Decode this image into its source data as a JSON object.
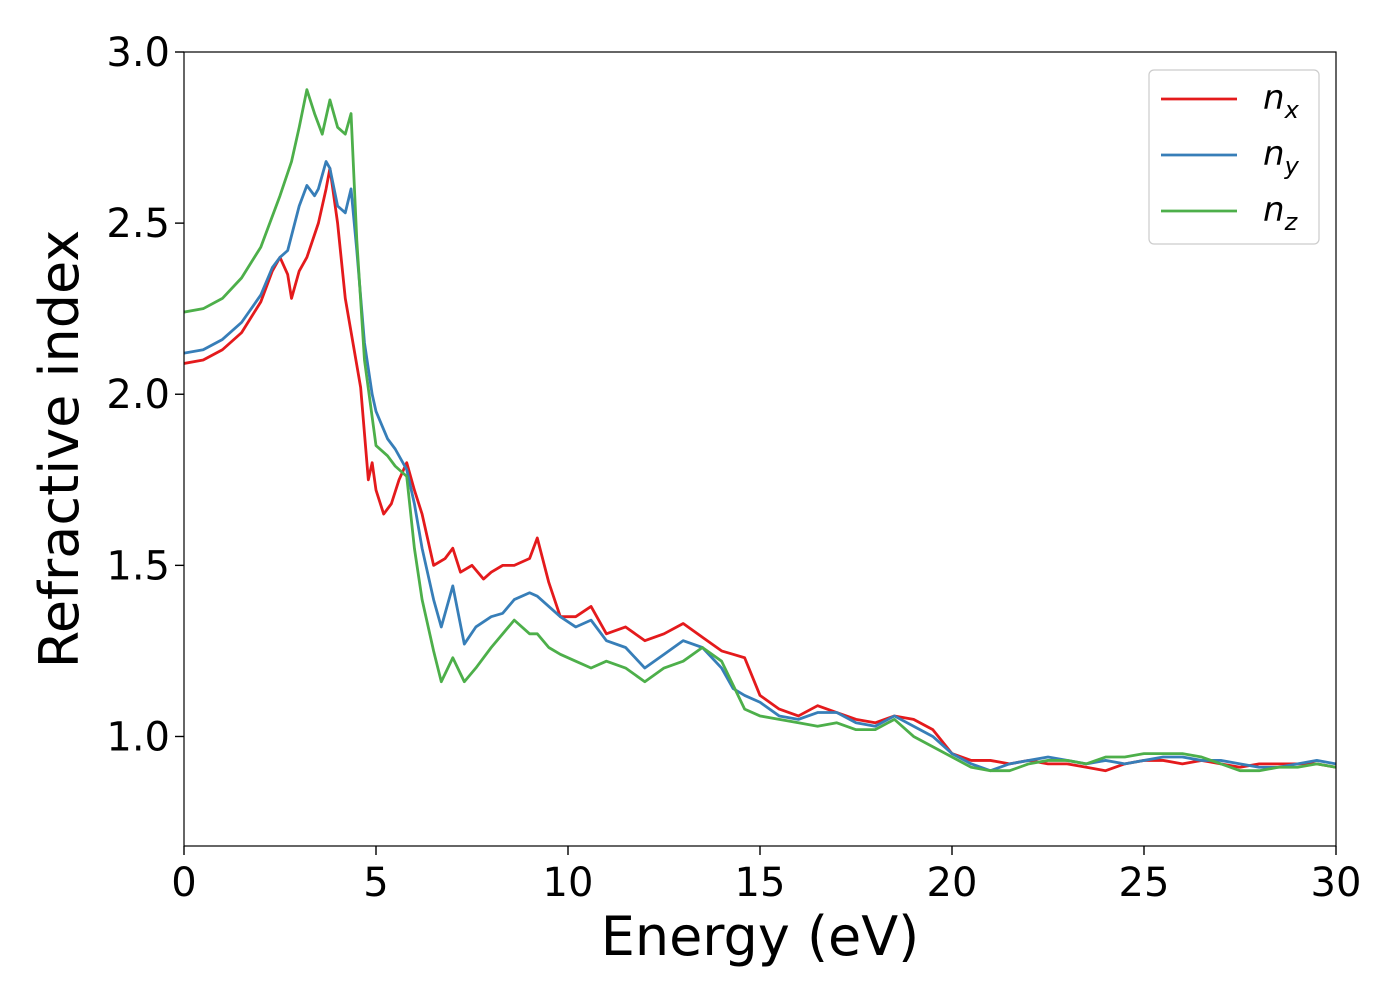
{
  "chart_data": {
    "type": "line",
    "title": "",
    "xlabel": "Energy (eV)",
    "ylabel": "Refractive index",
    "xlim": [
      0,
      30
    ],
    "ylim": [
      0.68,
      3.0
    ],
    "xticks": [
      0,
      5,
      10,
      15,
      20,
      25,
      30
    ],
    "xtick_labels": [
      "0",
      "5",
      "10",
      "15",
      "20",
      "25",
      "30"
    ],
    "yticks": [
      1.0,
      1.5,
      2.0,
      2.5,
      3.0
    ],
    "ytick_labels": [
      "1.0",
      "1.5",
      "2.0",
      "2.5",
      "3.0"
    ],
    "grid": false,
    "legend_position": "top-right",
    "series": [
      {
        "name": "n",
        "subscript": "x",
        "color": "#e41a1c",
        "x": [
          0,
          0.5,
          1,
          1.5,
          2,
          2.3,
          2.5,
          2.7,
          2.8,
          3,
          3.2,
          3.5,
          3.7,
          3.8,
          4,
          4.2,
          4.4,
          4.6,
          4.8,
          4.9,
          5,
          5.2,
          5.4,
          5.6,
          5.8,
          6,
          6.2,
          6.5,
          6.8,
          7,
          7.2,
          7.5,
          7.8,
          8,
          8.3,
          8.6,
          9,
          9.2,
          9.5,
          9.8,
          10.2,
          10.6,
          11,
          11.5,
          12,
          12.5,
          13,
          13.5,
          14,
          14.3,
          14.6,
          15,
          15.5,
          16,
          16.5,
          17,
          17.5,
          18,
          18.5,
          19,
          19.5,
          20,
          20.5,
          21,
          21.5,
          22,
          22.5,
          23,
          23.5,
          24,
          24.5,
          25,
          25.5,
          26,
          26.5,
          27,
          27.5,
          28,
          28.5,
          29,
          29.5,
          30
        ],
        "y": [
          2.09,
          2.1,
          2.13,
          2.18,
          2.27,
          2.36,
          2.4,
          2.35,
          2.28,
          2.36,
          2.4,
          2.5,
          2.6,
          2.66,
          2.5,
          2.28,
          2.15,
          2.02,
          1.75,
          1.8,
          1.72,
          1.65,
          1.68,
          1.75,
          1.8,
          1.72,
          1.65,
          1.5,
          1.52,
          1.55,
          1.48,
          1.5,
          1.46,
          1.48,
          1.5,
          1.5,
          1.52,
          1.58,
          1.45,
          1.35,
          1.35,
          1.38,
          1.3,
          1.32,
          1.28,
          1.3,
          1.33,
          1.29,
          1.25,
          1.24,
          1.23,
          1.12,
          1.08,
          1.06,
          1.09,
          1.07,
          1.05,
          1.04,
          1.06,
          1.05,
          1.02,
          0.95,
          0.93,
          0.93,
          0.92,
          0.93,
          0.92,
          0.92,
          0.91,
          0.9,
          0.92,
          0.93,
          0.93,
          0.92,
          0.93,
          0.92,
          0.91,
          0.92,
          0.92,
          0.92,
          0.92,
          0.91
        ]
      },
      {
        "name": "n",
        "subscript": "y",
        "color": "#377eb8",
        "x": [
          0,
          0.5,
          1,
          1.5,
          2,
          2.3,
          2.5,
          2.7,
          3,
          3.2,
          3.4,
          3.5,
          3.7,
          3.8,
          4,
          4.2,
          4.35,
          4.5,
          4.7,
          4.9,
          5,
          5.3,
          5.5,
          5.8,
          6,
          6.2,
          6.5,
          6.7,
          7,
          7.3,
          7.6,
          8,
          8.3,
          8.6,
          9,
          9.2,
          9.5,
          9.8,
          10.2,
          10.6,
          11,
          11.5,
          12,
          12.5,
          13,
          13.5,
          14,
          14.3,
          14.6,
          15,
          15.5,
          16,
          16.5,
          17,
          17.5,
          18,
          18.5,
          19,
          19.5,
          20,
          20.5,
          21,
          21.5,
          22,
          22.5,
          23,
          23.5,
          24,
          24.5,
          25,
          25.5,
          26,
          26.5,
          27,
          27.5,
          28,
          28.5,
          29,
          29.5,
          30
        ],
        "y": [
          2.12,
          2.13,
          2.16,
          2.21,
          2.29,
          2.37,
          2.4,
          2.42,
          2.55,
          2.61,
          2.58,
          2.6,
          2.68,
          2.66,
          2.55,
          2.53,
          2.6,
          2.42,
          2.15,
          2.0,
          1.95,
          1.87,
          1.84,
          1.78,
          1.68,
          1.55,
          1.4,
          1.32,
          1.44,
          1.27,
          1.32,
          1.35,
          1.36,
          1.4,
          1.42,
          1.41,
          1.38,
          1.35,
          1.32,
          1.34,
          1.28,
          1.26,
          1.2,
          1.24,
          1.28,
          1.26,
          1.2,
          1.14,
          1.12,
          1.1,
          1.06,
          1.05,
          1.07,
          1.07,
          1.04,
          1.03,
          1.06,
          1.03,
          1.0,
          0.95,
          0.92,
          0.9,
          0.92,
          0.93,
          0.94,
          0.93,
          0.92,
          0.93,
          0.92,
          0.93,
          0.94,
          0.94,
          0.93,
          0.93,
          0.92,
          0.91,
          0.91,
          0.92,
          0.93,
          0.92
        ]
      },
      {
        "name": "n",
        "subscript": "z",
        "color": "#4daf4a",
        "x": [
          0,
          0.5,
          1,
          1.5,
          2,
          2.5,
          2.8,
          3,
          3.2,
          3.4,
          3.6,
          3.8,
          4,
          4.2,
          4.35,
          4.5,
          4.7,
          5,
          5.3,
          5.5,
          5.8,
          6,
          6.2,
          6.5,
          6.7,
          7,
          7.3,
          7.6,
          8,
          8.3,
          8.6,
          9,
          9.2,
          9.5,
          9.8,
          10.2,
          10.6,
          11,
          11.5,
          12,
          12.5,
          13,
          13.5,
          14,
          14.3,
          14.6,
          15,
          15.5,
          16,
          16.5,
          17,
          17.5,
          18,
          18.5,
          19,
          19.5,
          20,
          20.5,
          21,
          21.5,
          22,
          22.5,
          23,
          23.5,
          24,
          24.5,
          25,
          25.5,
          26,
          26.5,
          27,
          27.5,
          28,
          28.5,
          29,
          29.5,
          30
        ],
        "y": [
          2.24,
          2.25,
          2.28,
          2.34,
          2.43,
          2.58,
          2.68,
          2.78,
          2.89,
          2.82,
          2.76,
          2.86,
          2.78,
          2.76,
          2.82,
          2.45,
          2.1,
          1.85,
          1.82,
          1.79,
          1.76,
          1.55,
          1.4,
          1.25,
          1.16,
          1.23,
          1.16,
          1.2,
          1.26,
          1.3,
          1.34,
          1.3,
          1.3,
          1.26,
          1.24,
          1.22,
          1.2,
          1.22,
          1.2,
          1.16,
          1.2,
          1.22,
          1.26,
          1.22,
          1.15,
          1.08,
          1.06,
          1.05,
          1.04,
          1.03,
          1.04,
          1.02,
          1.02,
          1.05,
          1.0,
          0.97,
          0.94,
          0.91,
          0.9,
          0.9,
          0.92,
          0.93,
          0.93,
          0.92,
          0.94,
          0.94,
          0.95,
          0.95,
          0.95,
          0.94,
          0.92,
          0.9,
          0.9,
          0.91,
          0.91,
          0.92,
          0.91
        ]
      }
    ]
  }
}
